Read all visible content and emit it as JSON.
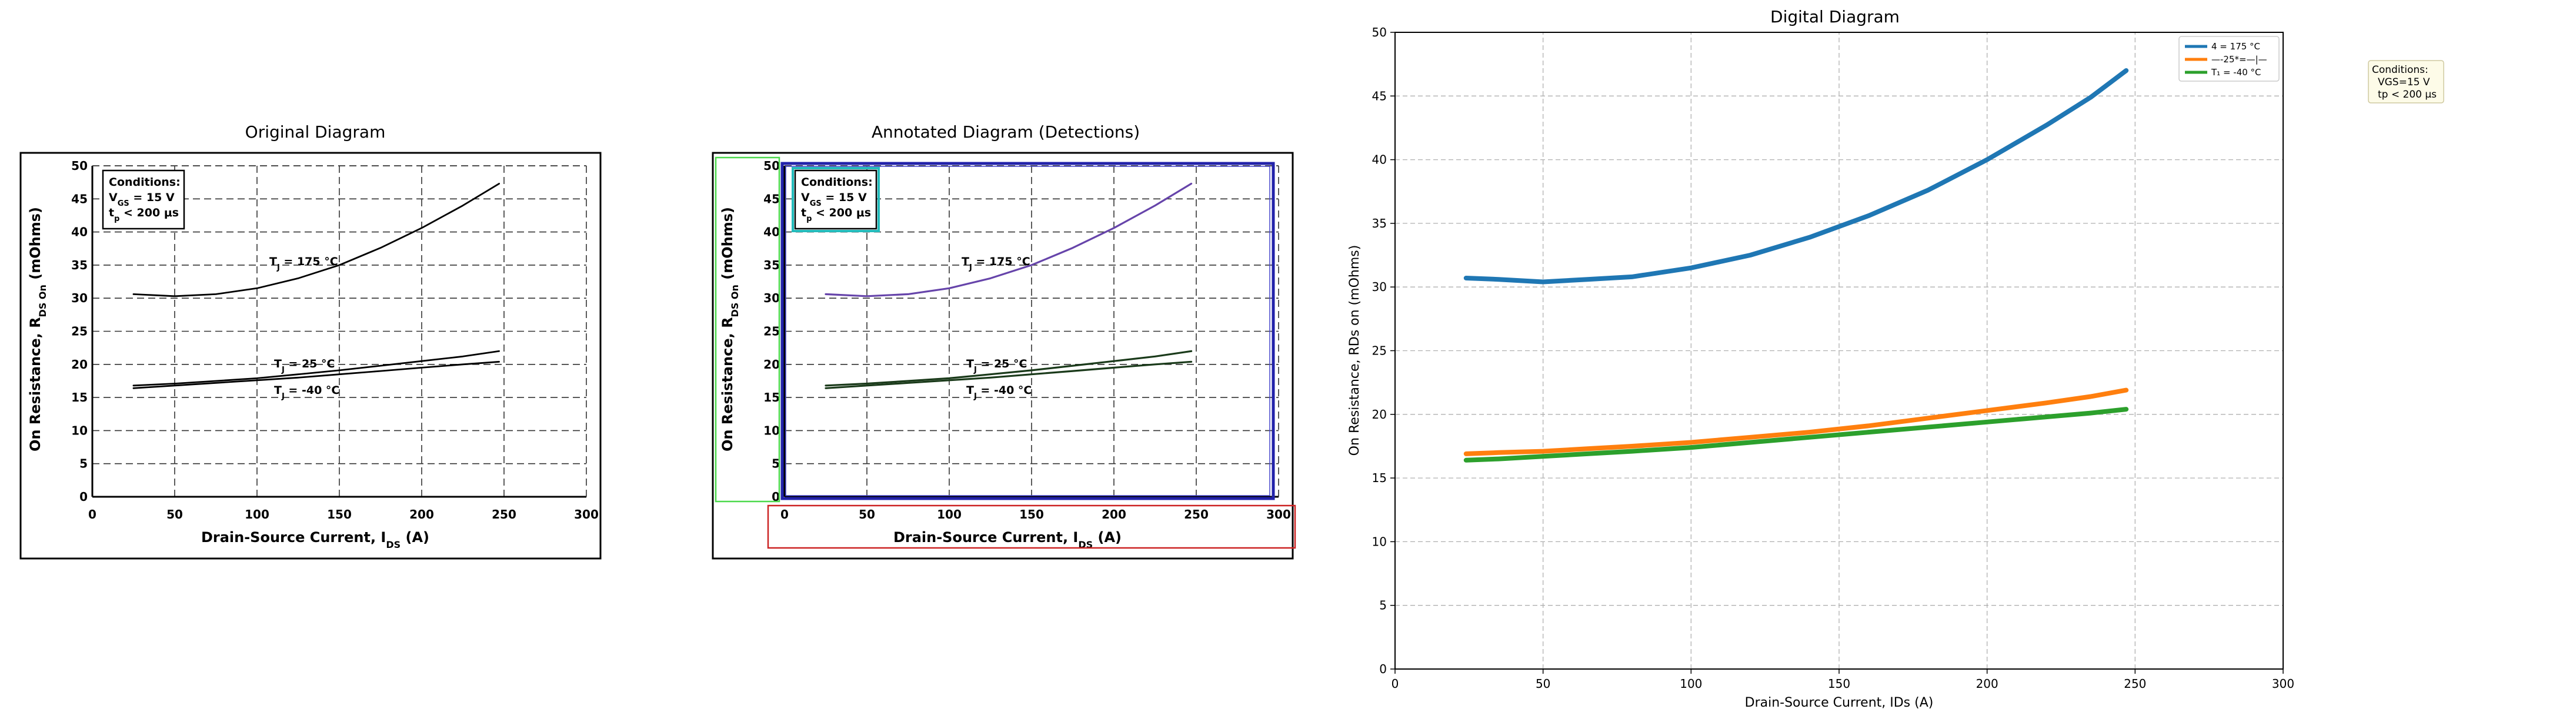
{
  "panels": {
    "original": {
      "title": "Original Diagram",
      "xlabel": "Drain-Source Current, I",
      "xlabel_sub": "DS",
      "xlabel_unit": " (A)",
      "ylabel": "On Resistance, R",
      "ylabel_sub": "DS On",
      "ylabel_unit": " (mOhms)",
      "conditions_title": "Conditions:",
      "conditions_line1": "V",
      "conditions_line1_sub": "GS",
      "conditions_line1_rest": " = 15 V",
      "conditions_line2": "t",
      "conditions_line2_sub": "p",
      "conditions_line2_rest": " < 200 μs",
      "curve_labels": {
        "t175": "T",
        "t175_sub": "J",
        "t175_rest": " = 175 °C",
        "t25": "T",
        "t25_sub": "J",
        "t25_rest": " = 25 °C",
        "tm40": "T",
        "tm40_sub": "J",
        "tm40_rest": " = -40 °C"
      }
    },
    "annotated": {
      "title": "Annotated Diagram (Detections)"
    },
    "digital": {
      "title": "Digital Diagram",
      "xlabel": "Drain-Source Current, IDs (A)",
      "ylabel": "On Resistance, RDs on (mOhms)",
      "legend": [
        "4 = 175 °C",
        "—-25*=—|—",
        "T₁ = -40 °C"
      ],
      "conditions_box": [
        "Conditions:",
        "VGS=15 V",
        "tp < 200 μs"
      ]
    }
  },
  "colors": {
    "s175": "#1f77b4",
    "s25": "#ff7f0e",
    "sm40": "#2ca02c",
    "annot_green": "#4cd94c",
    "annot_blue": "#2222aa",
    "annot_red": "#cc2222",
    "annot_cyan": "#22bbbb",
    "annot_purple": "#6644aa"
  },
  "chart_data": [
    {
      "type": "line",
      "title": "Original Diagram",
      "xlabel": "Drain-Source Current, IDS (A)",
      "ylabel": "On Resistance, RDS On (mOhms)",
      "xlim": [
        0,
        300
      ],
      "ylim": [
        0,
        50
      ],
      "x_ticks": [
        0,
        50,
        100,
        150,
        200,
        250,
        300
      ],
      "y_ticks": [
        0,
        5,
        10,
        15,
        20,
        25,
        30,
        35,
        40,
        45,
        50
      ],
      "grid": true,
      "x": [
        25,
        50,
        75,
        100,
        125,
        150,
        175,
        200,
        225,
        247
      ],
      "series": [
        {
          "name": "TJ = 175 °C",
          "values": [
            30.6,
            30.3,
            30.6,
            31.5,
            33.0,
            35.0,
            37.6,
            40.6,
            44.0,
            47.3
          ]
        },
        {
          "name": "TJ = 25 °C",
          "values": [
            16.8,
            17.1,
            17.5,
            17.9,
            18.5,
            19.1,
            19.8,
            20.5,
            21.2,
            22.0
          ]
        },
        {
          "name": "TJ = -40 °C",
          "values": [
            16.4,
            16.8,
            17.2,
            17.6,
            18.0,
            18.5,
            19.0,
            19.5,
            20.0,
            20.4
          ]
        }
      ],
      "annotations": [
        "Conditions:",
        "VGS = 15 V",
        "tp < 200 μs"
      ]
    },
    {
      "type": "line",
      "title": "Digital Diagram",
      "xlabel": "Drain-Source Current, IDs (A)",
      "ylabel": "On Resistance, RDs on (mOhms)",
      "xlim": [
        0,
        300
      ],
      "ylim": [
        0,
        50
      ],
      "x_ticks": [
        0,
        50,
        100,
        150,
        200,
        250,
        300
      ],
      "y_ticks": [
        0,
        5,
        10,
        15,
        20,
        25,
        30,
        35,
        40,
        45,
        50
      ],
      "grid": true,
      "legend_position": "top-right",
      "x": [
        24,
        35,
        50,
        65,
        80,
        100,
        120,
        140,
        160,
        180,
        200,
        220,
        235,
        247
      ],
      "series": [
        {
          "name": "4 = 175 °C",
          "values": [
            30.7,
            30.6,
            30.4,
            30.6,
            30.8,
            31.5,
            32.5,
            33.9,
            35.6,
            37.6,
            40.0,
            42.7,
            44.9,
            47.0
          ]
        },
        {
          "name": "—-25*=—|—",
          "values": [
            16.9,
            17.0,
            17.1,
            17.3,
            17.5,
            17.8,
            18.2,
            18.6,
            19.1,
            19.7,
            20.3,
            20.9,
            21.4,
            21.9
          ]
        },
        {
          "name": "T₁ = -40 °C",
          "values": [
            16.4,
            16.5,
            16.7,
            16.9,
            17.1,
            17.4,
            17.8,
            18.2,
            18.6,
            19.0,
            19.4,
            19.8,
            20.1,
            20.4
          ]
        }
      ],
      "annotations": [
        "Conditions:",
        "VGS=15 V",
        "tp < 200 μs"
      ]
    }
  ]
}
